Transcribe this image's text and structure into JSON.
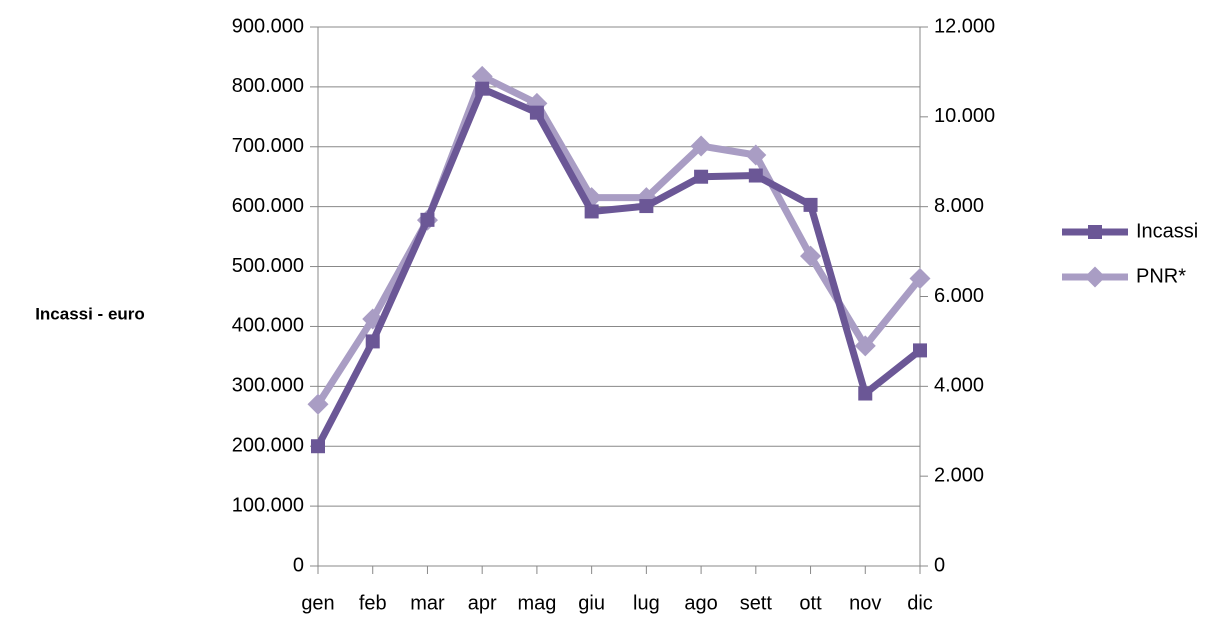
{
  "chart_data": {
    "type": "line",
    "y_axis_label": "Incassi - euro",
    "categories": [
      "gen",
      "feb",
      "mar",
      "apr",
      "mag",
      "giu",
      "lug",
      "ago",
      "sett",
      "ott",
      "nov",
      "dic"
    ],
    "series": [
      {
        "name": "Incassi",
        "color": "#6b5796",
        "marker": "square",
        "values": [
          200000,
          375000,
          578000,
          797000,
          757000,
          592000,
          601000,
          650000,
          652000,
          603000,
          288000,
          360000
        ]
      },
      {
        "name": "PNR*",
        "color": "#a99dc4",
        "marker": "diamond",
        "axis": "y2",
        "values": [
          3600,
          5500,
          7700,
          10900,
          10300,
          8200,
          8200,
          9350,
          9150,
          6900,
          4900,
          6400
        ]
      }
    ],
    "ylim": [
      0,
      900000
    ],
    "yticks": [
      0,
      {
        "value": 100000,
        "label": "100.000"
      },
      {
        "value": 200000,
        "label": "200.000"
      },
      {
        "value": 300000,
        "label": "300.000"
      },
      {
        "value": 400000,
        "label": "400.000"
      },
      {
        "value": 500000,
        "label": "500.000"
      },
      {
        "value": 600000,
        "label": "600.000"
      },
      {
        "value": 700000,
        "label": "700.000"
      },
      {
        "value": 800000,
        "label": "800.000"
      },
      {
        "value": 900000,
        "label": "900.000"
      }
    ],
    "y2lim": [
      0,
      12000
    ],
    "y2ticks": [
      0,
      {
        "value": 2000,
        "label": "2.000"
      },
      {
        "value": 4000,
        "label": "4.000"
      },
      {
        "value": 6000,
        "label": "6.000"
      },
      {
        "value": 8000,
        "label": "8.000"
      },
      {
        "value": 10000,
        "label": "10.000"
      },
      {
        "value": 12000,
        "label": "12.000"
      }
    ],
    "grid": true,
    "legend": "right"
  }
}
